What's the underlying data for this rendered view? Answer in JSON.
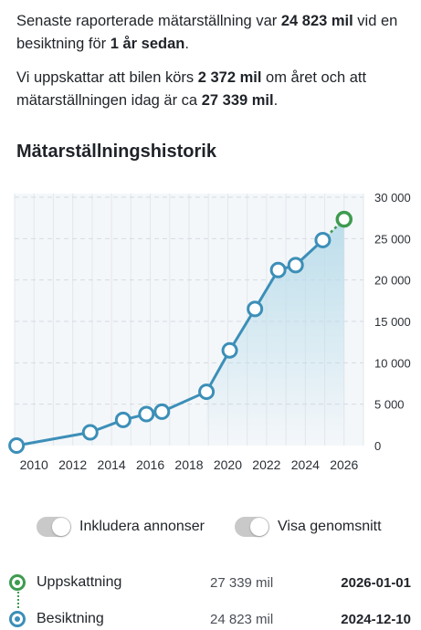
{
  "summary": {
    "p1": [
      {
        "t": "Senaste raporterade mätarställning var ",
        "b": false
      },
      {
        "t": "24 823 mil",
        "b": true
      },
      {
        "t": " vid en besiktning för ",
        "b": false
      },
      {
        "t": "1 år sedan",
        "b": true
      },
      {
        "t": ".",
        "b": false
      }
    ],
    "p2": [
      {
        "t": "Vi uppskattar att bilen körs ",
        "b": false
      },
      {
        "t": "2 372 mil",
        "b": true
      },
      {
        "t": " om året och att mätarställningen idag är ca ",
        "b": false
      },
      {
        "t": "27 339 mil",
        "b": true
      },
      {
        "t": ".",
        "b": false
      }
    ]
  },
  "section_title": "Mätarställningshistorik",
  "chart_data": {
    "type": "line",
    "x_ticks": [
      "2010",
      "2012",
      "2014",
      "2016",
      "2018",
      "2020",
      "2022",
      "2024",
      "2026"
    ],
    "y_ticks": [
      "30 000",
      "25 000",
      "20 000",
      "15 000",
      "10 000",
      "5 000",
      "0"
    ],
    "xlim": [
      2009,
      2027
    ],
    "ylim": [
      0,
      30000
    ],
    "grid": true,
    "series": [
      {
        "kind": "besiktning",
        "color": "#3c8fb8",
        "points": [
          {
            "x": 2009.1,
            "y": 0
          },
          {
            "x": 2012.9,
            "y": 1600
          },
          {
            "x": 2014.6,
            "y": 3100
          },
          {
            "x": 2015.8,
            "y": 3800
          },
          {
            "x": 2016.6,
            "y": 4100
          },
          {
            "x": 2018.9,
            "y": 6500
          },
          {
            "x": 2020.1,
            "y": 11500
          },
          {
            "x": 2021.4,
            "y": 16500
          },
          {
            "x": 2022.6,
            "y": 21200
          },
          {
            "x": 2023.5,
            "y": 21800
          },
          {
            "x": 2024.9,
            "y": 24823
          }
        ]
      },
      {
        "kind": "uppskattning",
        "color": "#3e9b4f",
        "points": [
          {
            "x": 2024.9,
            "y": 24823
          },
          {
            "x": 2026.0,
            "y": 27339
          }
        ]
      }
    ]
  },
  "toggles": [
    {
      "label": "Inkludera annonser",
      "on": false
    },
    {
      "label": "Visa genomsnitt",
      "on": false
    }
  ],
  "legend": [
    {
      "name": "Uppskattning",
      "value": "27 339 mil",
      "date": "2026-01-01",
      "color": "#3e9b4f"
    },
    {
      "name": "Besiktning",
      "value": "24 823 mil",
      "date": "2024-12-10",
      "color": "#3c8fb8"
    }
  ]
}
